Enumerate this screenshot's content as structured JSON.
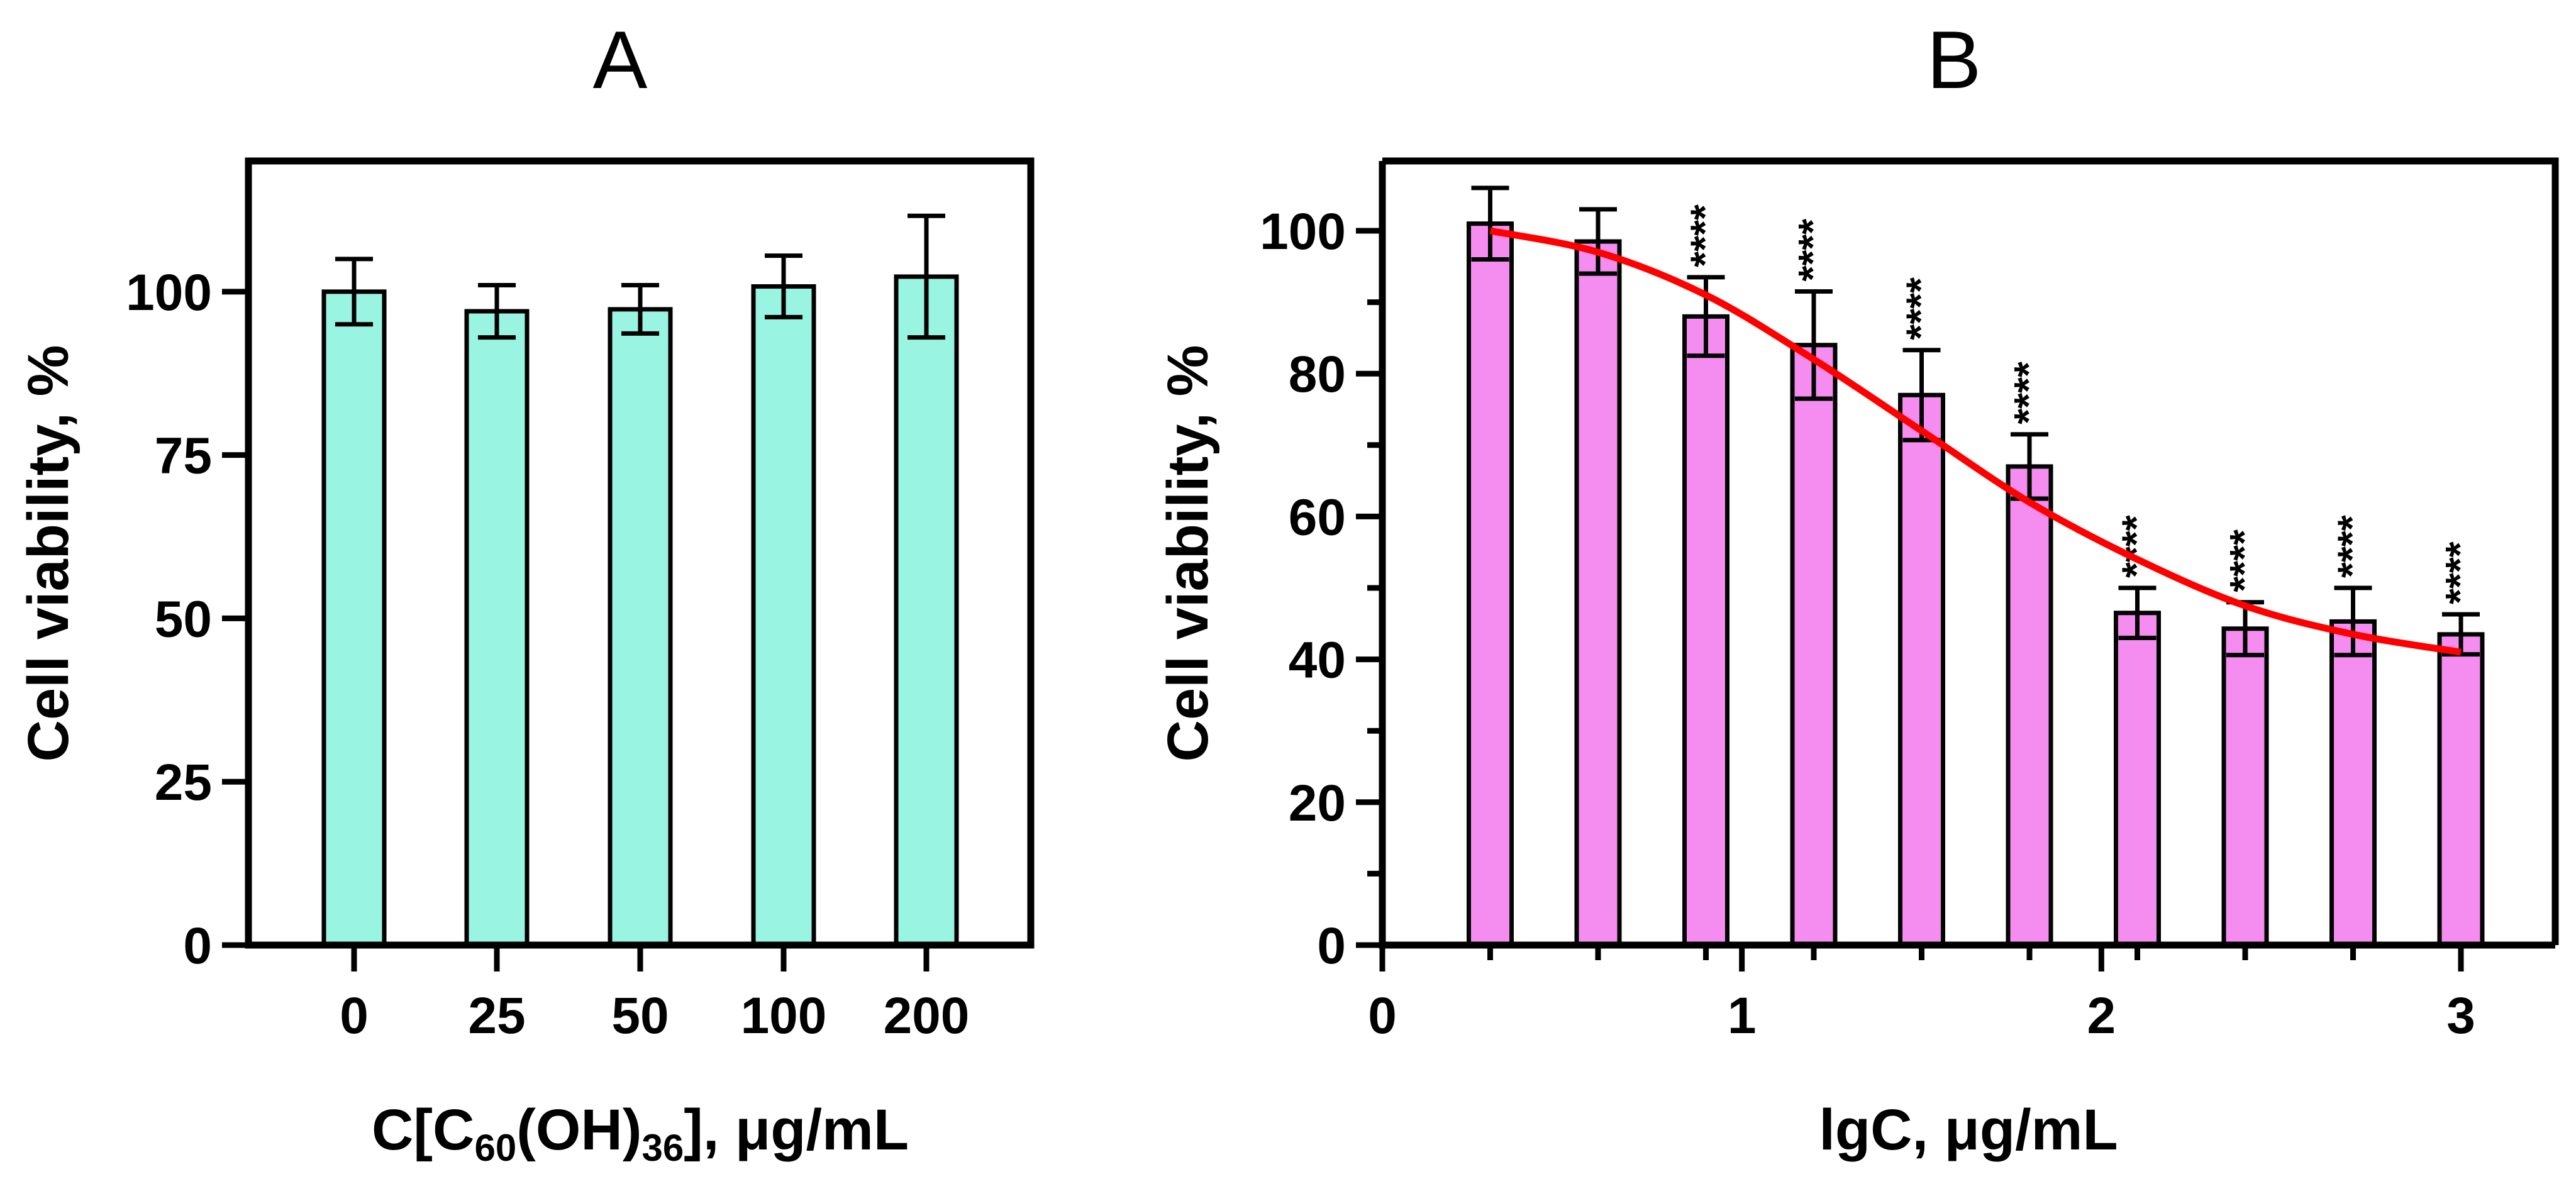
{
  "chart_data": [
    {
      "type": "bar",
      "panel_label": "A",
      "categories": [
        "0",
        "25",
        "50",
        "100",
        "200"
      ],
      "values": [
        100.0,
        97.0,
        97.3,
        100.8,
        102.3
      ],
      "errors": [
        5.0,
        4.0,
        3.7,
        4.7,
        9.3
      ],
      "bar_color": "#99f5e1",
      "ylabel": "Cell viability, %",
      "xlabel_parts": {
        "prefix": "C[C",
        "sub1": "60",
        "mid": "(OH)",
        "sub2": "36",
        "suffix": "], μg/mL"
      },
      "ylim": [
        0,
        120
      ],
      "yticks": [
        0,
        25,
        50,
        75,
        100
      ],
      "grid": false
    },
    {
      "type": "bar",
      "panel_label": "B",
      "x": [
        0.3,
        0.6,
        0.9,
        1.2,
        1.5,
        1.8,
        2.1,
        2.4,
        2.7,
        3.0
      ],
      "values": [
        101.0,
        98.5,
        88.0,
        84.0,
        77.0,
        67.0,
        46.5,
        44.3,
        45.3,
        43.5
      ],
      "errors": [
        5.0,
        4.5,
        5.5,
        7.5,
        6.3,
        4.5,
        3.5,
        3.7,
        4.7,
        2.8
      ],
      "significance": [
        "",
        "",
        "****",
        "****",
        "****",
        "****",
        "****",
        "****",
        "****",
        "****"
      ],
      "bar_color": "#f58df0",
      "fit_curve": {
        "color": "#ff0000",
        "x": [
          0.3,
          0.6,
          0.9,
          1.2,
          1.5,
          1.8,
          2.1,
          2.4,
          2.7,
          3.0
        ],
        "y": [
          100.0,
          97.0,
          91.0,
          82.0,
          72.0,
          62.0,
          54.0,
          47.5,
          43.5,
          41.0
        ]
      },
      "ylabel": "Cell viability, %",
      "xlabel": "lgC, μg/mL",
      "xlim": [
        0,
        3.2
      ],
      "ylim": [
        0,
        110
      ],
      "xticks": [
        0,
        1,
        2,
        3
      ],
      "yticks": [
        0,
        20,
        40,
        60,
        80,
        100
      ],
      "grid": false
    }
  ]
}
